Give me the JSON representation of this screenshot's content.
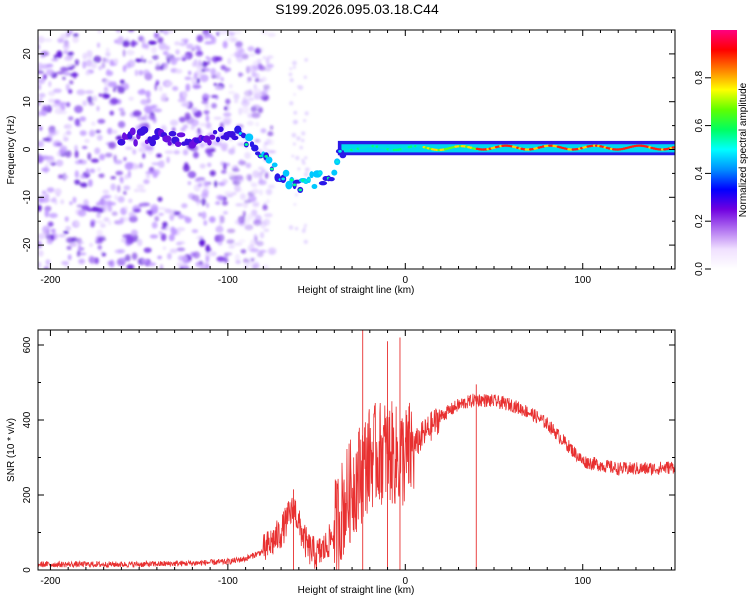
{
  "page": {
    "title": "S199.2026.095.03.18.C44"
  },
  "colorbar": {
    "label": "Normalized spectral amplitude",
    "ticks": [
      0.0,
      0.2,
      0.4,
      0.6,
      0.8
    ],
    "tick_labels": [
      "0.0",
      "0.2",
      "0.4",
      "0.6",
      "0.8"
    ],
    "range": [
      0,
      1
    ],
    "gradient_colors": [
      "#ffffff",
      "#f0e0ff",
      "#b070f0",
      "#7000e0",
      "#0000ff",
      "#0090ff",
      "#00ffff",
      "#00ff60",
      "#60ff00",
      "#ffff00",
      "#ff8000",
      "#ff0000",
      "#ff0080"
    ]
  },
  "chart_data": [
    {
      "type": "heatmap",
      "name": "spectrogram",
      "title": "S199.2026.095.03.18.C44",
      "xlabel": "Height of straight line (km)",
      "ylabel": "Frequency (Hz)",
      "xlim": [
        -207,
        152
      ],
      "ylim": [
        -25,
        25
      ],
      "xticks": [
        -200,
        -100,
        0,
        100
      ],
      "yticks": [
        -20,
        -10,
        0,
        10,
        20
      ],
      "ridge": {
        "x": [
          -160,
          -140,
          -120,
          -100,
          -90,
          -80,
          -70,
          -60,
          -50,
          -40,
          -35,
          -30,
          -20,
          -10,
          0,
          10,
          20,
          40,
          60,
          80,
          90,
          100,
          120,
          150
        ],
        "y": [
          2,
          3,
          2,
          4,
          2,
          -2,
          -5,
          -8,
          -6,
          -5,
          0,
          1,
          0,
          1,
          0,
          1,
          0,
          1,
          0,
          1,
          1,
          0,
          0,
          0
        ]
      },
      "peak_amplitude_range_km": [
        40,
        150
      ],
      "noise_region_km": [
        -207,
        -85
      ]
    },
    {
      "type": "line",
      "name": "snr",
      "xlabel": "Height of straight line (km)",
      "ylabel": "SNR (10 * v/v)",
      "xlim": [
        -207,
        152
      ],
      "ylim": [
        0,
        640
      ],
      "xticks": [
        -200,
        -100,
        0,
        100
      ],
      "yticks": [
        0,
        200,
        400,
        600
      ],
      "color": "#e83030",
      "series": [
        {
          "name": "SNR",
          "x": [
            -207,
            -180,
            -150,
            -120,
            -100,
            -90,
            -80,
            -70,
            -65,
            -62,
            -60,
            -55,
            -50,
            -45,
            -40,
            -35,
            -30,
            -25,
            -20,
            -15,
            -10,
            -5,
            0,
            5,
            10,
            20,
            30,
            40,
            50,
            60,
            70,
            80,
            90,
            100,
            110,
            120,
            130,
            140,
            152
          ],
          "y": [
            15,
            15,
            15,
            18,
            22,
            30,
            50,
            100,
            150,
            160,
            120,
            60,
            40,
            60,
            100,
            170,
            220,
            260,
            300,
            310,
            320,
            300,
            300,
            330,
            360,
            410,
            440,
            455,
            450,
            440,
            420,
            390,
            340,
            290,
            280,
            270,
            270,
            270,
            275
          ]
        }
      ],
      "spikes": [
        {
          "x": -63,
          "y": 215
        },
        {
          "x": -24,
          "y": 640
        },
        {
          "x": -10,
          "y": 610
        },
        {
          "x": -3,
          "y": 620
        },
        {
          "x": 40,
          "y": 495
        }
      ]
    }
  ]
}
